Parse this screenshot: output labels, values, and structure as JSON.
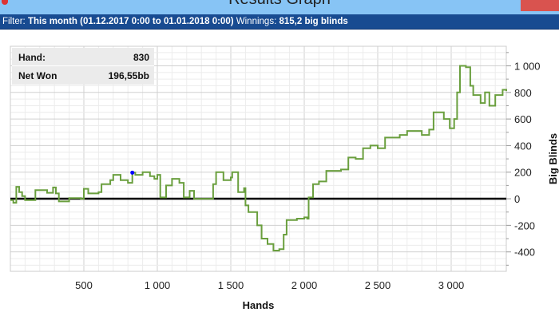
{
  "window": {
    "title": "Results Graph"
  },
  "filter": {
    "label": "Filter:",
    "value": "This month (01.12.2017 0:00 to 01.01.2018 0:00)",
    "winnings_label": "Winnings:",
    "winnings_value": "815,2 big blinds"
  },
  "tooltip": {
    "hand_label": "Hand:",
    "hand_value": "830",
    "net_label": "Net Won",
    "net_value": "196,55bb"
  },
  "colors": {
    "line": "#6a9f3e",
    "marker": "#0000ff",
    "zero_line": "#000000",
    "titlebar": "#87c4f5",
    "filterbar": "#184b91"
  },
  "chart_data": {
    "type": "line",
    "xlabel": "Hands",
    "ylabel": "Big Blinds",
    "xlim": [
      0,
      3375
    ],
    "ylim": [
      -546,
      1147
    ],
    "xticks": [
      500,
      1000,
      1500,
      2000,
      2500,
      3000
    ],
    "xtick_labels": [
      "500",
      "1 000",
      "1 500",
      "2 000",
      "2 500",
      "3 000"
    ],
    "yticks": [
      -400,
      -200,
      0,
      200,
      400,
      600,
      800,
      1000
    ],
    "ytick_labels": [
      "-400",
      "-200",
      "0",
      "200",
      "400",
      "600",
      "800",
      "1 000"
    ],
    "grid": true,
    "highlight": {
      "x": 830,
      "y": 196.55
    },
    "x": [
      0,
      20,
      40,
      60,
      80,
      100,
      150,
      170,
      250,
      290,
      310,
      330,
      400,
      480,
      500,
      530,
      600,
      620,
      680,
      700,
      750,
      800,
      830,
      850,
      900,
      950,
      980,
      1000,
      1020,
      1060,
      1100,
      1150,
      1180,
      1220,
      1250,
      1360,
      1380,
      1400,
      1450,
      1500,
      1510,
      1550,
      1590,
      1600,
      1620,
      1680,
      1710,
      1750,
      1790,
      1830,
      1860,
      1880,
      1950,
      2000,
      2020,
      2030,
      2060,
      2100,
      2150,
      2250,
      2300,
      2350,
      2400,
      2450,
      2500,
      2550,
      2650,
      2700,
      2800,
      2850,
      2880,
      2950,
      2990,
      3020,
      3040,
      3060,
      3100,
      3130,
      3150,
      3200,
      3230,
      3260,
      3300,
      3350,
      3375
    ],
    "y": [
      -10,
      -30,
      90,
      50,
      20,
      -10,
      -10,
      65,
      45,
      85,
      40,
      -20,
      5,
      0,
      75,
      40,
      50,
      110,
      140,
      180,
      140,
      120,
      196.55,
      180,
      200,
      170,
      150,
      180,
      10,
      100,
      150,
      120,
      10,
      60,
      0,
      0,
      110,
      200,
      140,
      160,
      200,
      50,
      80,
      -50,
      -100,
      -200,
      -300,
      -340,
      -390,
      -380,
      -270,
      -160,
      -150,
      -140,
      -150,
      10,
      110,
      130,
      210,
      220,
      310,
      300,
      380,
      400,
      380,
      460,
      480,
      510,
      480,
      520,
      650,
      600,
      530,
      600,
      800,
      1000,
      990,
      850,
      780,
      720,
      800,
      700,
      780,
      820,
      810
    ]
  }
}
